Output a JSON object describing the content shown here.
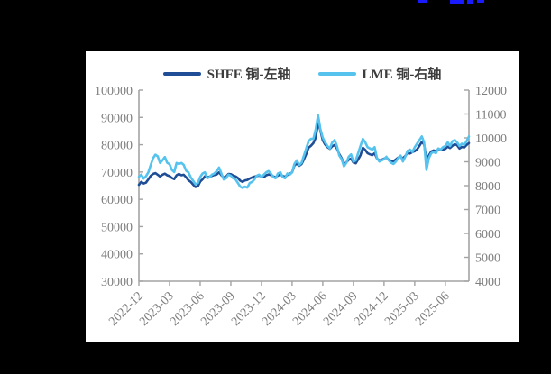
{
  "page": {
    "background_color": "#000000",
    "panel_background_color": "#ffffff",
    "cropped_blue_marks_color": "#1a1aff"
  },
  "legend": {
    "items": [
      {
        "label": "SHFE 铜-左轴",
        "color": "#1f4e96",
        "axis": "left"
      },
      {
        "label": "LME 铜-右轴",
        "color": "#55c3ee",
        "axis": "right"
      }
    ]
  },
  "chart_data": {
    "type": "line",
    "title": "",
    "grid": false,
    "legend_position": "top-center",
    "axis_color": "#a3a3a3",
    "tick_label_color": "#7d7d7d",
    "left_axis": {
      "label": "SHFE 铜 (左轴)",
      "min": 30000,
      "max": 100000,
      "step": 10000,
      "tick_values": [
        100000,
        90000,
        80000,
        70000,
        60000,
        50000,
        40000,
        30000
      ],
      "tick_labels": [
        "100000",
        "90000",
        "80000",
        "70000",
        "60000",
        "50000",
        "40000",
        "30000"
      ]
    },
    "right_axis": {
      "label": "LME 铜 (右轴)",
      "min": 4000,
      "max": 12000,
      "step": 1000,
      "tick_values": [
        12000,
        11000,
        10000,
        9000,
        8000,
        7000,
        6000,
        5000,
        4000
      ],
      "tick_labels": [
        "12000",
        "11000",
        "10000",
        "9000",
        "8000",
        "7000",
        "6000",
        "5000",
        "4000"
      ]
    },
    "x_ticks": [
      {
        "label": "2022-12",
        "index": 0
      },
      {
        "label": "2023-03",
        "index": 13
      },
      {
        "label": "2023-06",
        "index": 26
      },
      {
        "label": "2023-09",
        "index": 39
      },
      {
        "label": "2023-12",
        "index": 52
      },
      {
        "label": "2024-03",
        "index": 65
      },
      {
        "label": "2024-06",
        "index": 78
      },
      {
        "label": "2024-09",
        "index": 91
      },
      {
        "label": "2024-12",
        "index": 104
      },
      {
        "label": "2025-03",
        "index": 117
      },
      {
        "label": "2025-06",
        "index": 130
      }
    ],
    "dates": [
      "2022-12-05",
      "2022-12-12",
      "2022-12-19",
      "2022-12-26",
      "2023-01-02",
      "2023-01-09",
      "2023-01-16",
      "2023-01-23",
      "2023-01-30",
      "2023-02-06",
      "2023-02-13",
      "2023-02-20",
      "2023-02-27",
      "2023-03-06",
      "2023-03-13",
      "2023-03-20",
      "2023-03-27",
      "2023-04-03",
      "2023-04-10",
      "2023-04-17",
      "2023-04-24",
      "2023-05-01",
      "2023-05-08",
      "2023-05-15",
      "2023-05-22",
      "2023-05-29",
      "2023-06-05",
      "2023-06-12",
      "2023-06-19",
      "2023-06-26",
      "2023-07-03",
      "2023-07-10",
      "2023-07-17",
      "2023-07-24",
      "2023-07-31",
      "2023-08-07",
      "2023-08-14",
      "2023-08-21",
      "2023-08-28",
      "2023-09-04",
      "2023-09-11",
      "2023-09-18",
      "2023-09-25",
      "2023-10-02",
      "2023-10-09",
      "2023-10-16",
      "2023-10-23",
      "2023-10-30",
      "2023-11-06",
      "2023-11-13",
      "2023-11-20",
      "2023-11-27",
      "2023-12-04",
      "2023-12-11",
      "2023-12-18",
      "2023-12-25",
      "2024-01-01",
      "2024-01-08",
      "2024-01-15",
      "2024-01-22",
      "2024-01-29",
      "2024-02-05",
      "2024-02-12",
      "2024-02-19",
      "2024-02-26",
      "2024-03-04",
      "2024-03-11",
      "2024-03-18",
      "2024-03-25",
      "2024-04-01",
      "2024-04-08",
      "2024-04-15",
      "2024-04-22",
      "2024-04-29",
      "2024-05-06",
      "2024-05-13",
      "2024-05-20",
      "2024-05-27",
      "2024-06-03",
      "2024-06-10",
      "2024-06-17",
      "2024-06-24",
      "2024-07-01",
      "2024-07-08",
      "2024-07-15",
      "2024-07-22",
      "2024-07-29",
      "2024-08-05",
      "2024-08-12",
      "2024-08-19",
      "2024-08-26",
      "2024-09-02",
      "2024-09-09",
      "2024-09-16",
      "2024-09-23",
      "2024-09-30",
      "2024-10-07",
      "2024-10-14",
      "2024-10-21",
      "2024-10-28",
      "2024-11-04",
      "2024-11-11",
      "2024-11-18",
      "2024-11-25",
      "2024-12-02",
      "2024-12-09",
      "2024-12-16",
      "2024-12-23",
      "2024-12-30",
      "2025-01-06",
      "2025-01-13",
      "2025-01-20",
      "2025-01-27",
      "2025-02-03",
      "2025-02-10",
      "2025-02-17",
      "2025-02-24",
      "2025-03-03",
      "2025-03-10",
      "2025-03-17",
      "2025-03-24",
      "2025-03-31",
      "2025-04-07",
      "2025-04-14",
      "2025-04-21",
      "2025-04-28",
      "2025-05-05",
      "2025-05-12",
      "2025-05-19",
      "2025-05-26",
      "2025-06-02",
      "2025-06-09",
      "2025-06-16",
      "2025-06-23",
      "2025-06-30",
      "2025-07-07",
      "2025-07-14",
      "2025-07-21",
      "2025-07-28",
      "2025-08-04",
      "2025-08-11"
    ],
    "series": [
      {
        "name": "SHFE 铜-左轴",
        "axis": "left",
        "color": "#1f4e96",
        "values": [
          65300,
          66400,
          65800,
          66100,
          67300,
          68600,
          69300,
          69600,
          69000,
          68300,
          69000,
          69400,
          68800,
          68500,
          67800,
          67400,
          68800,
          69300,
          68800,
          69000,
          68100,
          67000,
          66400,
          65400,
          64500,
          64800,
          66500,
          67300,
          68400,
          68100,
          68300,
          68600,
          68900,
          69100,
          69900,
          68800,
          68000,
          68300,
          69300,
          69200,
          68700,
          68400,
          67800,
          66800,
          66400,
          66900,
          67100,
          67600,
          68000,
          68300,
          68500,
          68700,
          68300,
          68100,
          68800,
          69100,
          68900,
          68400,
          68100,
          68700,
          69100,
          68500,
          68300,
          68900,
          69300,
          69900,
          72400,
          73100,
          72300,
          72900,
          74600,
          76600,
          78900,
          79600,
          80600,
          82600,
          88000,
          85200,
          81600,
          80100,
          79100,
          78500,
          79400,
          79900,
          78600,
          76600,
          75100,
          72900,
          73600,
          74500,
          74900,
          73500,
          73200,
          74600,
          76100,
          78900,
          78100,
          76900,
          76500,
          76200,
          76900,
          75000,
          74200,
          74500,
          74900,
          75300,
          74500,
          74100,
          74000,
          74600,
          75300,
          75600,
          75000,
          75900,
          77000,
          76800,
          77300,
          77600,
          78300,
          79600,
          81000,
          80100,
          74600,
          76100,
          77500,
          77900,
          77600,
          78300,
          78000,
          78200,
          78500,
          79300,
          78800,
          79600,
          80200,
          79800,
          78600,
          79200,
          79000,
          79900,
          80600
        ]
      },
      {
        "name": "LME 铜-右轴",
        "axis": "right",
        "color": "#55c3ee",
        "values": [
          8370,
          8460,
          8300,
          8390,
          8560,
          8860,
          9150,
          9300,
          9230,
          8950,
          9060,
          9200,
          8960,
          8900,
          8660,
          8570,
          8950,
          8910,
          8950,
          8870,
          8630,
          8560,
          8350,
          8210,
          8060,
          8110,
          8360,
          8510,
          8560,
          8310,
          8360,
          8460,
          8510,
          8610,
          8760,
          8510,
          8260,
          8310,
          8460,
          8410,
          8310,
          8260,
          8110,
          7960,
          7910,
          7960,
          7920,
          8110,
          8160,
          8260,
          8410,
          8460,
          8360,
          8460,
          8560,
          8610,
          8510,
          8360,
          8310,
          8510,
          8560,
          8360,
          8310,
          8510,
          8460,
          8560,
          8910,
          9060,
          8860,
          8960,
          9260,
          9560,
          9860,
          9960,
          9960,
          10360,
          10950,
          10360,
          10010,
          9810,
          9660,
          9560,
          9810,
          9910,
          9660,
          9260,
          9110,
          8810,
          8960,
          9210,
          9310,
          9010,
          9060,
          9360,
          9660,
          9960,
          9810,
          9610,
          9560,
          9510,
          9610,
          9160,
          9010,
          9060,
          9110,
          9210,
          9060,
          8960,
          8910,
          9010,
          9160,
          9260,
          9010,
          9210,
          9460,
          9510,
          9410,
          9610,
          9760,
          9910,
          10060,
          9810,
          8660,
          9160,
          9360,
          9410,
          9360,
          9560,
          9510,
          9610,
          9660,
          9810,
          9660,
          9860,
          9910,
          9810,
          9660,
          9760,
          9710,
          9860,
          10060
        ]
      }
    ]
  }
}
